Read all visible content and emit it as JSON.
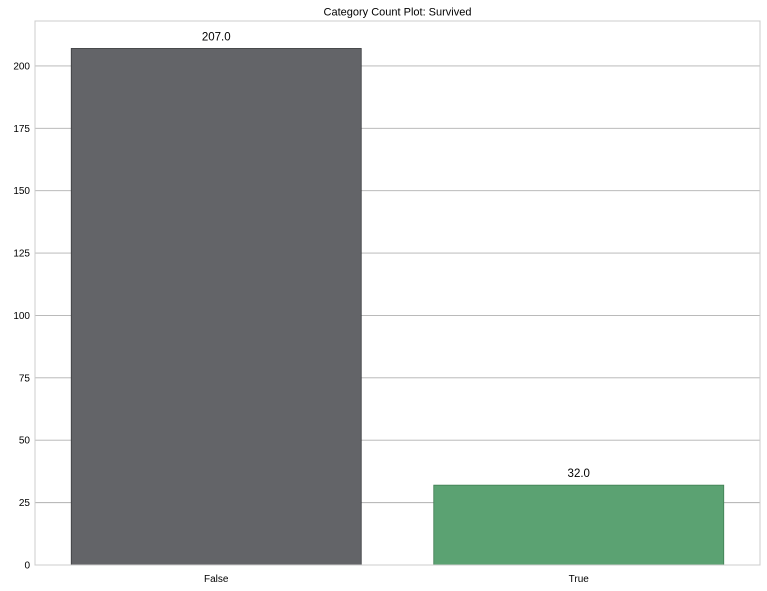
{
  "chart_data": {
    "type": "bar",
    "title": "Category Count Plot: Survived",
    "xlabel": "",
    "ylabel": "",
    "categories": [
      "False",
      "True"
    ],
    "values": [
      207,
      32
    ],
    "value_labels": [
      "207.0",
      "32.0"
    ],
    "ylim": [
      0,
      218
    ],
    "yticks": [
      0,
      25,
      50,
      75,
      100,
      125,
      150,
      175,
      200
    ],
    "grid": "horizontal",
    "colors": {
      "bars": [
        "#636468",
        "#5ba272"
      ],
      "bar_edges": [
        "#3a3b3e",
        "#3f7d52"
      ],
      "grid": "#b0b0b0",
      "frame": "#cccccc"
    }
  }
}
